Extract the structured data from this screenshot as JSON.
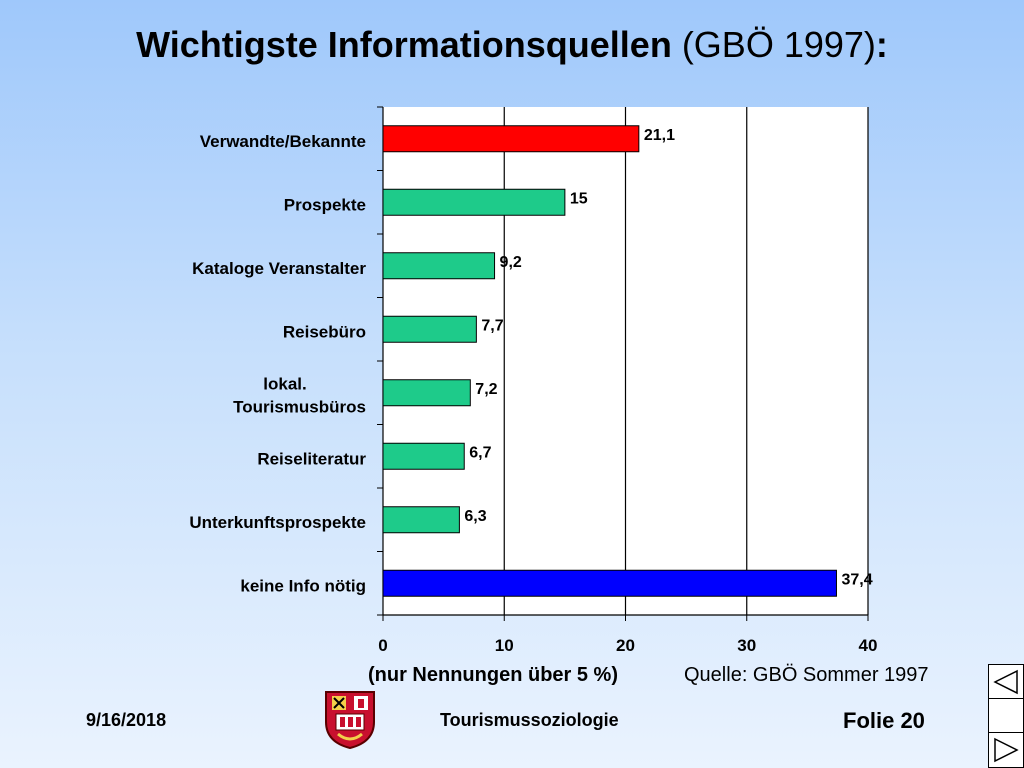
{
  "slide": {
    "title_bold": "Wichtigste Informationsquellen",
    "title_normal": " (GBÖ 1997)",
    "title_colon": ":",
    "note_left": "(nur Nennungen über 5 %)",
    "note_right": "Quelle: GBÖ Sommer 1997",
    "date": "9/16/2018",
    "footer_center": "Tourismussoziologie",
    "folie": "Folie 20"
  },
  "nav": {
    "icons": [
      "triangle-left-icon",
      "blank-icon",
      "triangle-right-icon"
    ]
  },
  "chart_data": {
    "type": "bar",
    "orientation": "horizontal",
    "categories": [
      "Verwandte/Bekannte",
      "Prospekte",
      "Kataloge Veranstalter",
      "Reisebüro",
      "lokal. Tourismusbüros",
      "Reiseliteratur",
      "Unterkunftsprospekte",
      "keine Info nötig"
    ],
    "category_lines": [
      [
        "Verwandte/Bekannte"
      ],
      [
        "Prospekte"
      ],
      [
        "Kataloge Veranstalter"
      ],
      [
        "Reisebüro"
      ],
      [
        "lokal.",
        "Tourismusbüros"
      ],
      [
        "Reiseliteratur"
      ],
      [
        "Unterkunftsprospekte"
      ],
      [
        "keine Info nötig"
      ]
    ],
    "values": [
      21.1,
      15,
      9.2,
      7.7,
      7.2,
      6.7,
      6.3,
      37.4
    ],
    "value_labels": [
      "21,1",
      "15",
      "9,2",
      "7,7",
      "7,2",
      "6,7",
      "6,3",
      "37,4"
    ],
    "bar_colors": [
      "#ff0000",
      "#1ecb8a",
      "#1ecb8a",
      "#1ecb8a",
      "#1ecb8a",
      "#1ecb8a",
      "#1ecb8a",
      "#0000ff"
    ],
    "xlim": [
      0,
      40
    ],
    "xticks": [
      0,
      10,
      20,
      30,
      40
    ],
    "xtick_labels": [
      "0",
      "10",
      "20",
      "30",
      "40"
    ],
    "grid": "vertical",
    "background": "#ffffff"
  }
}
